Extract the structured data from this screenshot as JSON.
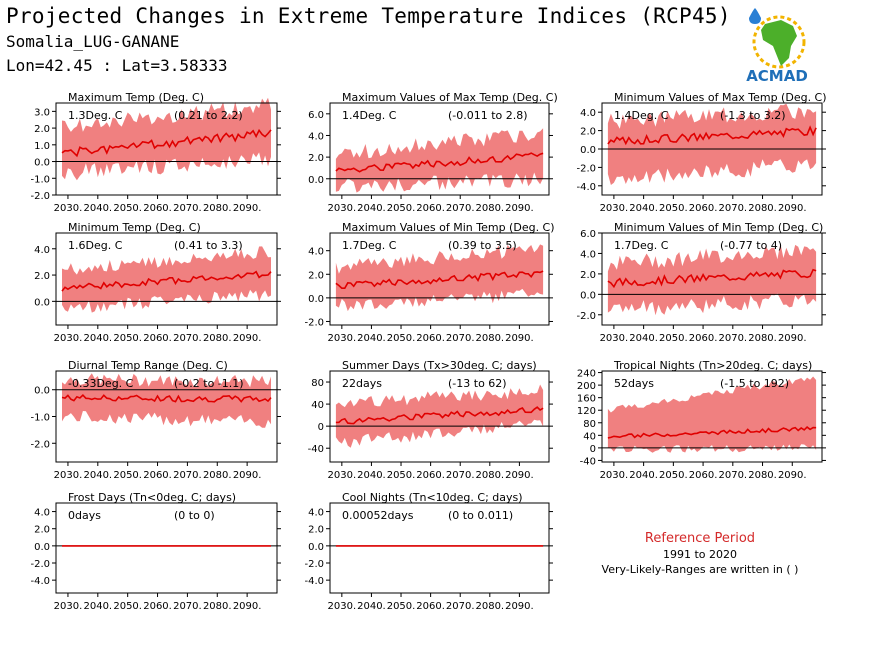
{
  "header": {
    "title": "Projected Changes in Extreme Temperature Indices (RCP45)",
    "location": "Somalia_LUG-GANANE",
    "coords": "Lon=42.45 : Lat=3.58333"
  },
  "logo": {
    "text": "ACMAD",
    "icon": "africa-map-sun-icon",
    "colors": {
      "text": "#1f6fb8",
      "map": "#4caf2a",
      "sun": "#f2b400",
      "drop": "#2a7fd4"
    }
  },
  "reference": {
    "title": "Reference Period",
    "years": "1991 to 2020",
    "note": "Very-Likely-Ranges are written in ( )"
  },
  "colors": {
    "band": "#f08080",
    "line": "#e00000",
    "zero": "#000000"
  },
  "chart_data": [
    {
      "type": "area",
      "title": "Maximum Temp (Deg. C)",
      "mean_label": "1.3Deg. C",
      "range_label": "(0.21 to 2.2)",
      "x": [
        2026,
        2100
      ],
      "xticks": [
        2030,
        2040,
        2050,
        2060,
        2070,
        2080,
        2090
      ],
      "xtick_labels": [
        "2030.",
        "2040.",
        "2050.",
        "2060.",
        "2070.",
        "2080.",
        "2090."
      ],
      "ylim": [
        -2.0,
        3.5
      ],
      "yticks": [
        -2.0,
        -1.0,
        0.0,
        1.0,
        2.0,
        3.0
      ],
      "ytick_labels": [
        "-2.0",
        "-1.0",
        "0.0",
        "1.0",
        "2.0",
        "3.0"
      ],
      "trend": [
        0.5,
        1.7
      ],
      "band": [
        [
          -0.7,
          2.0
        ],
        [
          0.2,
          3.4
        ]
      ],
      "noise": 0.25,
      "seed": 1
    },
    {
      "type": "area",
      "title": "Maximum Values of Max Temp (Deg. C)",
      "mean_label": "1.4Deg. C",
      "range_label": "(-0.011 to 2.8)",
      "x": [
        2026,
        2100
      ],
      "xticks": [
        2030,
        2040,
        2050,
        2060,
        2070,
        2080,
        2090
      ],
      "xtick_labels": [
        "2030.",
        "2040.",
        "2050.",
        "2060.",
        "2070.",
        "2080.",
        "2090."
      ],
      "ylim": [
        -1.5,
        7.0
      ],
      "yticks": [
        0.0,
        2.0,
        4.0,
        6.0
      ],
      "ytick_labels": [
        "0.0",
        "2.0",
        "4.0",
        "6.0"
      ],
      "trend": [
        0.8,
        2.1
      ],
      "band": [
        [
          -0.7,
          2.3
        ],
        [
          0.0,
          4.2
        ]
      ],
      "noise": 0.35,
      "seed": 2
    },
    {
      "type": "area",
      "title": "Minimum Values of Max Temp (Deg. C)",
      "mean_label": "1.4Deg. C",
      "range_label": "(-1.3 to 3.2)",
      "x": [
        2026,
        2100
      ],
      "xticks": [
        2030,
        2040,
        2050,
        2060,
        2070,
        2080,
        2090
      ],
      "xtick_labels": [
        "2030.",
        "2040.",
        "2050.",
        "2060.",
        "2070.",
        "2080.",
        "2090."
      ],
      "ylim": [
        -5.0,
        5.0
      ],
      "yticks": [
        -4.0,
        -2.0,
        0.0,
        2.0,
        4.0
      ],
      "ytick_labels": [
        "-4.0",
        "-2.0",
        "0.0",
        "2.0",
        "4.0"
      ],
      "trend": [
        0.8,
        2.0
      ],
      "band": [
        [
          -3.5,
          3.0
        ],
        [
          -1.5,
          4.2
        ]
      ],
      "noise": 0.45,
      "seed": 3
    },
    {
      "type": "area",
      "title": "Minimum Temp (Deg. C)",
      "mean_label": "1.6Deg. C",
      "range_label": "(0.41 to 3.3)",
      "x": [
        2026,
        2100
      ],
      "xticks": [
        2030,
        2040,
        2050,
        2060,
        2070,
        2080,
        2090
      ],
      "xtick_labels": [
        "2030.",
        "2040.",
        "2050.",
        "2060.",
        "2070.",
        "2080.",
        "2090."
      ],
      "ylim": [
        -1.8,
        5.2
      ],
      "yticks": [
        0.0,
        2.0,
        4.0
      ],
      "ytick_labels": [
        "0.0",
        "2.0",
        "4.0"
      ],
      "trend": [
        1.0,
        2.1
      ],
      "band": [
        [
          -0.5,
          2.4
        ],
        [
          0.5,
          3.8
        ]
      ],
      "noise": 0.25,
      "seed": 4
    },
    {
      "type": "area",
      "title": "Maximum Values of Min Temp (Deg. C)",
      "mean_label": "1.7Deg. C",
      "range_label": "(0.39 to 3.5)",
      "x": [
        2026,
        2100
      ],
      "xticks": [
        2030,
        2040,
        2050,
        2060,
        2070,
        2080,
        2090
      ],
      "xtick_labels": [
        "2030.",
        "2040.",
        "2050.",
        "2060.",
        "2070.",
        "2080.",
        "2090."
      ],
      "ylim": [
        -2.3,
        5.5
      ],
      "yticks": [
        -2.0,
        0.0,
        2.0,
        4.0
      ],
      "ytick_labels": [
        "-2.0",
        "0.0",
        "2.0",
        "4.0"
      ],
      "trend": [
        1.0,
        2.1
      ],
      "band": [
        [
          -0.7,
          2.6
        ],
        [
          0.4,
          4.2
        ]
      ],
      "noise": 0.3,
      "seed": 5
    },
    {
      "type": "area",
      "title": "Minimum Values of Min Temp (Deg. C)",
      "mean_label": "1.7Deg. C",
      "range_label": "(-0.77 to 4)",
      "x": [
        2026,
        2100
      ],
      "xticks": [
        2030,
        2040,
        2050,
        2060,
        2070,
        2080,
        2090
      ],
      "xtick_labels": [
        "2030.",
        "2040.",
        "2050.",
        "2060.",
        "2070.",
        "2080.",
        "2090."
      ],
      "ylim": [
        -3.0,
        6.0
      ],
      "yticks": [
        -2.0,
        0.0,
        2.0,
        4.0,
        6.0
      ],
      "ytick_labels": [
        "-2.0",
        "0.0",
        "2.0",
        "4.0",
        "6.0"
      ],
      "trend": [
        1.1,
        2.1
      ],
      "band": [
        [
          -1.5,
          3.0
        ],
        [
          -0.5,
          4.5
        ]
      ],
      "noise": 0.4,
      "seed": 6
    },
    {
      "type": "area",
      "title": "Diurnal Temp Range (Deg. C)",
      "mean_label": "-0.33Deg. C",
      "range_label": "(-0.2 to -1.1)",
      "x": [
        2026,
        2100
      ],
      "xticks": [
        2030,
        2040,
        2050,
        2060,
        2070,
        2080,
        2090
      ],
      "xtick_labels": [
        "2030.",
        "2040.",
        "2050.",
        "2060.",
        "2070.",
        "2080.",
        "2090."
      ],
      "ylim": [
        -2.7,
        0.7
      ],
      "yticks": [
        -2.0,
        -1.0,
        0.0
      ],
      "ytick_labels": [
        "-2.0",
        "-1.0",
        "0.0"
      ],
      "trend": [
        -0.3,
        -0.35
      ],
      "band": [
        [
          -1.0,
          0.4
        ],
        [
          -1.2,
          0.3
        ]
      ],
      "noise": 0.12,
      "seed": 7
    },
    {
      "type": "area",
      "title": "Summer Days (Tx>30deg. C; days)",
      "mean_label": "22days",
      "range_label": "(-13 to 62)",
      "x": [
        2026,
        2100
      ],
      "xticks": [
        2030,
        2040,
        2050,
        2060,
        2070,
        2080,
        2090
      ],
      "xtick_labels": [
        "2030.",
        "2040.",
        "2050.",
        "2060.",
        "2070.",
        "2080.",
        "2090."
      ],
      "ylim": [
        -65,
        100
      ],
      "yticks": [
        -40,
        0,
        40,
        80
      ],
      "ytick_labels": [
        "-40",
        "0",
        "40",
        "80"
      ],
      "trend": [
        8,
        30
      ],
      "band": [
        [
          -30,
          40
        ],
        [
          5,
          65
        ]
      ],
      "noise": 6,
      "seed": 8
    },
    {
      "type": "area",
      "title": "Tropical Nights (Tn>20deg. C; days)",
      "mean_label": "52days",
      "range_label": "(-1.5 to 192)",
      "x": [
        2026,
        2100
      ],
      "xticks": [
        2030,
        2040,
        2050,
        2060,
        2070,
        2080,
        2090
      ],
      "xtick_labels": [
        "2030.",
        "2040.",
        "2050.",
        "2060.",
        "2070.",
        "2080.",
        "2090."
      ],
      "ylim": [
        -45,
        245
      ],
      "yticks": [
        -40,
        0,
        40,
        80,
        120,
        160,
        200,
        240
      ],
      "ytick_labels": [
        "-40",
        "0",
        "40",
        "80",
        "120",
        "160",
        "200",
        "240"
      ],
      "trend": [
        35,
        62
      ],
      "band": [
        [
          -5,
          120
        ],
        [
          0,
          225
        ]
      ],
      "noise": 6,
      "seed": 9
    },
    {
      "type": "area",
      "title": "Frost Days (Tn<0deg. C; days)",
      "mean_label": "0days",
      "range_label": "(0 to 0)",
      "x": [
        2026,
        2100
      ],
      "xticks": [
        2030,
        2040,
        2050,
        2060,
        2070,
        2080,
        2090
      ],
      "xtick_labels": [
        "2030.",
        "2040.",
        "2050.",
        "2060.",
        "2070.",
        "2080.",
        "2090."
      ],
      "ylim": [
        -5.5,
        5.0
      ],
      "yticks": [
        -4.0,
        -2.0,
        0.0,
        2.0,
        4.0
      ],
      "ytick_labels": [
        "-4.0",
        "-2.0",
        "0.0",
        "2.0",
        "4.0"
      ],
      "trend": [
        0,
        0
      ],
      "band": [
        [
          0,
          0
        ],
        [
          0,
          0
        ]
      ],
      "noise": 0,
      "seed": 10
    },
    {
      "type": "area",
      "title": "Cool Nights (Tn<10deg. C; days)",
      "mean_label": "0.00052days",
      "range_label": "(0 to 0.011)",
      "x": [
        2026,
        2100
      ],
      "xticks": [
        2030,
        2040,
        2050,
        2060,
        2070,
        2080,
        2090
      ],
      "xtick_labels": [
        "2030.",
        "2040.",
        "2050.",
        "2060.",
        "2070.",
        "2080.",
        "2090."
      ],
      "ylim": [
        -5.5,
        5.0
      ],
      "yticks": [
        -4.0,
        -2.0,
        0.0,
        2.0,
        4.0
      ],
      "ytick_labels": [
        "-4.0",
        "-2.0",
        "0.0",
        "2.0",
        "4.0"
      ],
      "trend": [
        0,
        0
      ],
      "band": [
        [
          0,
          0
        ],
        [
          0,
          0.05
        ]
      ],
      "noise": 0,
      "seed": 11
    }
  ]
}
